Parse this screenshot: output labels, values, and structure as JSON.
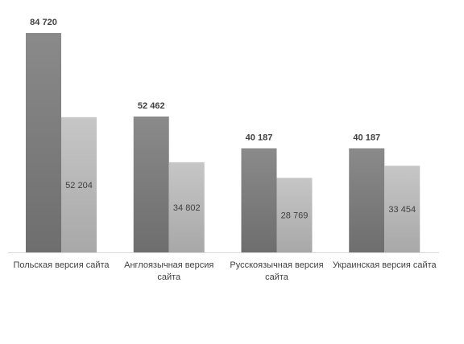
{
  "chart_data": {
    "type": "bar",
    "categories": [
      [
        "Польская версия сайта"
      ],
      [
        "Англоязычная версия",
        "сайта"
      ],
      [
        "Русскоязычная версия",
        "сайта"
      ],
      [
        "Украинская версия сайта"
      ]
    ],
    "series": [
      {
        "values": [
          84720,
          52462,
          40187,
          40187
        ],
        "labels": [
          "84 720",
          "52 462",
          "40 187",
          "40 187"
        ],
        "color_top": "#8a8a8a",
        "color_bottom": "#6e6e6e",
        "label_position": "outside-top",
        "label_weight": "bold"
      },
      {
        "values": [
          52204,
          34802,
          28769,
          33454
        ],
        "labels": [
          "52 204",
          "34 802",
          "28 769",
          "33 454"
        ],
        "color_top": "#c6c6c6",
        "color_bottom": "#a8a8a8",
        "label_position": "inside",
        "label_weight": "normal"
      }
    ],
    "title": "",
    "xlabel": "",
    "ylabel": "",
    "ylim": [
      0,
      90000
    ],
    "grid": false,
    "legend": "none"
  }
}
